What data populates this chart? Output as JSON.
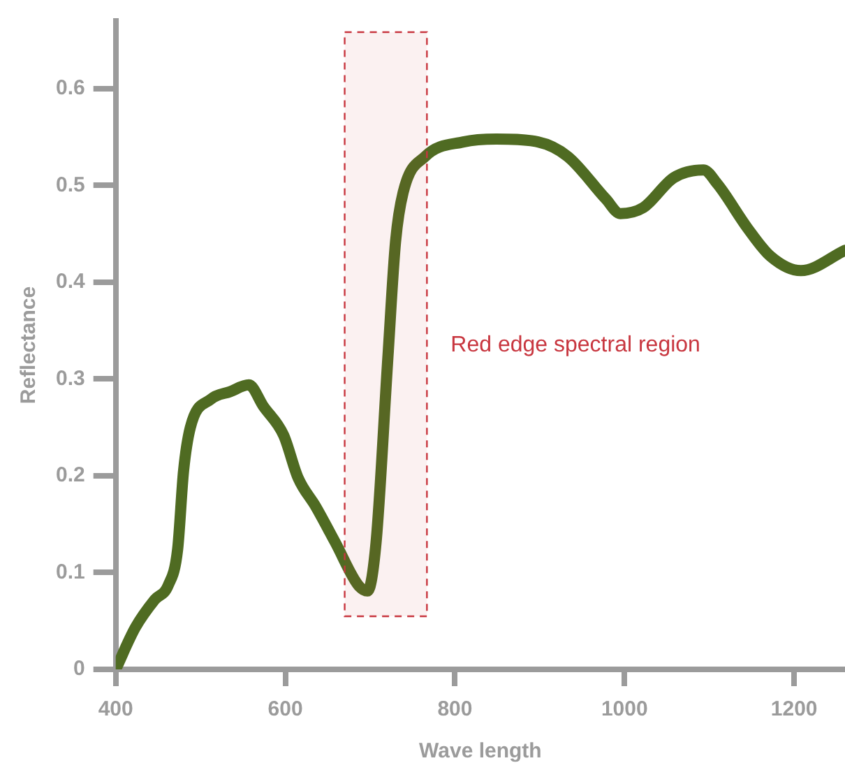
{
  "chart_data": {
    "type": "line",
    "xlabel": "Wave length",
    "ylabel": "Reflectance",
    "xlim": [
      400,
      1260
    ],
    "ylim": [
      0,
      0.67
    ],
    "xticks": [
      400,
      600,
      800,
      1000,
      1200
    ],
    "yticks": [
      0,
      0.1,
      0.2,
      0.3,
      0.4,
      0.5,
      0.6
    ],
    "grid": false,
    "legend": false,
    "marker": "none",
    "line_style": "solid",
    "series": [
      {
        "color": "#4f6b22",
        "x": [
          400,
          423,
          446,
          462,
          473,
          480,
          488,
          512,
          535,
          557,
          574,
          598,
          615,
          636,
          659,
          686,
          697,
          707,
          721,
          730,
          739,
          765,
          810,
          849,
          898,
          933,
          978,
          995,
          1022,
          1058,
          1093,
          1110,
          1145,
          1172,
          1208,
          1260
        ],
        "values": [
          0,
          0.043,
          0.072,
          0.087,
          0.124,
          0.205,
          0.25,
          0.279,
          0.287,
          0.294,
          0.272,
          0.242,
          0.198,
          0.168,
          0.131,
          0.087,
          0.081,
          0.131,
          0.323,
          0.442,
          0.493,
          0.53,
          0.545,
          0.548,
          0.545,
          0.53,
          0.486,
          0.471,
          0.477,
          0.508,
          0.516,
          0.501,
          0.456,
          0.427,
          0.412,
          0.433
        ]
      }
    ],
    "bands": [
      {
        "axis": "x",
        "from": 670,
        "to": 767,
        "label": "Red edge spectral region",
        "color": "#c8363f"
      }
    ]
  }
}
